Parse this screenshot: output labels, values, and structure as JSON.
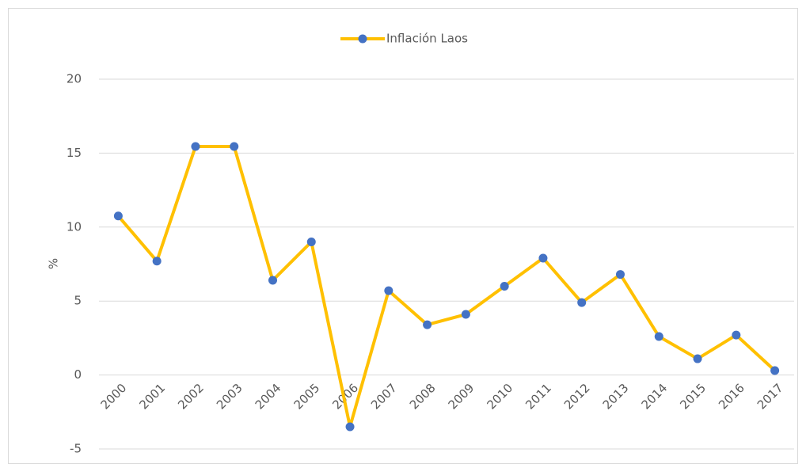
{
  "chart_data": {
    "type": "line",
    "ylabel": "%",
    "categories": [
      "2000",
      "2001",
      "2002",
      "2003",
      "2004",
      "2005",
      "2006",
      "2007",
      "2008",
      "2009",
      "2010",
      "2011",
      "2012",
      "2013",
      "2014",
      "2015",
      "2016",
      "2017"
    ],
    "series": [
      {
        "name": "Inflación Laos",
        "color": "#FFC000",
        "marker_color": "#4472C4",
        "values": [
          10.75,
          7.7,
          15.45,
          15.45,
          6.4,
          9.0,
          -3.5,
          5.7,
          3.4,
          4.1,
          6.0,
          7.9,
          4.9,
          6.8,
          2.6,
          1.1,
          2.7,
          0.3
        ]
      }
    ],
    "ylim": [
      -5,
      20
    ],
    "yticks": [
      -5,
      0,
      5,
      10,
      15,
      20
    ],
    "grid": true,
    "legend": "top"
  }
}
